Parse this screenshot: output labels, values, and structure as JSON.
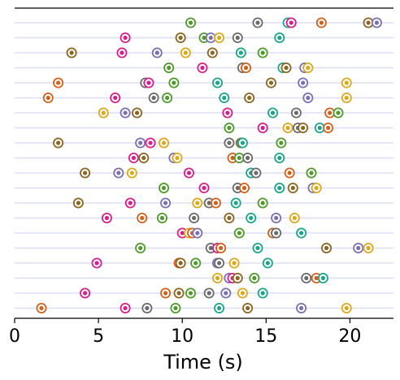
{
  "chart_data": {
    "type": "scatter",
    "title": "",
    "xlabel": "Time (s)",
    "ylabel": "",
    "xlim": [
      0,
      22.6
    ],
    "xticks": [
      0,
      5,
      10,
      15,
      20
    ],
    "xtick_labels": [
      "0",
      "5",
      "10",
      "15",
      "20"
    ],
    "grid": "horizontal row lines",
    "row_line_color": "#ddddf8",
    "palette": {
      "green": "#4e9a2a",
      "pink": "#d61f8c",
      "brown": "#8c6520",
      "orange": "#d2601a",
      "purple": "#7b6fb4",
      "gray": "#6a6a6a",
      "yellow": "#dca81b",
      "teal": "#1aa589"
    },
    "rows": [
      [
        [
          10.5,
          "green"
        ],
        [
          14.5,
          "gray"
        ],
        [
          16.3,
          "teal"
        ],
        [
          16.5,
          "pink"
        ],
        [
          18.3,
          "orange"
        ],
        [
          21.1,
          "brown"
        ],
        [
          21.6,
          "purple"
        ]
      ],
      [
        [
          6.6,
          "pink"
        ],
        [
          9.9,
          "brown"
        ],
        [
          11.3,
          "green"
        ],
        [
          11.7,
          "purple"
        ],
        [
          12.2,
          "yellow"
        ],
        [
          13.3,
          "gray"
        ],
        [
          15.8,
          "teal"
        ]
      ],
      [
        [
          3.4,
          "brown"
        ],
        [
          6.4,
          "pink"
        ],
        [
          8.5,
          "purple"
        ],
        [
          10.2,
          "yellow"
        ],
        [
          11.8,
          "brown"
        ],
        [
          13.5,
          "teal"
        ],
        [
          14.8,
          "green"
        ]
      ],
      [
        [
          9.2,
          "green"
        ],
        [
          11.2,
          "pink"
        ],
        [
          13.6,
          "gray"
        ],
        [
          13.8,
          "orange"
        ],
        [
          16.0,
          "teal"
        ],
        [
          16.2,
          "brown"
        ],
        [
          17.3,
          "purple"
        ],
        [
          17.5,
          "yellow"
        ]
      ],
      [
        [
          2.6,
          "orange"
        ],
        [
          7.8,
          "gray"
        ],
        [
          8.0,
          "pink"
        ],
        [
          9.5,
          "green"
        ],
        [
          12.1,
          "teal"
        ],
        [
          15.3,
          "brown"
        ],
        [
          17.2,
          "purple"
        ],
        [
          19.8,
          "yellow"
        ]
      ],
      [
        [
          2.0,
          "orange"
        ],
        [
          6.0,
          "pink"
        ],
        [
          8.3,
          "gray"
        ],
        [
          9.1,
          "green"
        ],
        [
          12.5,
          "teal"
        ],
        [
          14.0,
          "brown"
        ],
        [
          17.5,
          "purple"
        ],
        [
          19.8,
          "yellow"
        ]
      ],
      [
        [
          5.3,
          "yellow"
        ],
        [
          6.6,
          "purple"
        ],
        [
          7.3,
          "brown"
        ],
        [
          12.7,
          "pink"
        ],
        [
          15.4,
          "teal"
        ],
        [
          16.8,
          "gray"
        ],
        [
          18.8,
          "orange"
        ],
        [
          19.3,
          "green"
        ]
      ],
      [
        [
          12.8,
          "green"
        ],
        [
          14.8,
          "pink"
        ],
        [
          16.3,
          "yellow"
        ],
        [
          16.9,
          "gray"
        ],
        [
          17.2,
          "brown"
        ],
        [
          18.2,
          "teal"
        ],
        [
          18.7,
          "orange"
        ]
      ],
      [
        [
          2.6,
          "brown"
        ],
        [
          7.5,
          "purple"
        ],
        [
          8.1,
          "pink"
        ],
        [
          8.9,
          "yellow"
        ],
        [
          12.8,
          "gray"
        ],
        [
          13.5,
          "brown"
        ],
        [
          13.6,
          "teal"
        ],
        [
          15.9,
          "green"
        ]
      ],
      [
        [
          7.1,
          "pink"
        ],
        [
          7.7,
          "brown"
        ],
        [
          9.5,
          "purple"
        ],
        [
          9.7,
          "yellow"
        ],
        [
          13.0,
          "orange"
        ],
        [
          13.4,
          "green"
        ],
        [
          13.9,
          "gray"
        ],
        [
          15.8,
          "teal"
        ]
      ],
      [
        [
          4.2,
          "brown"
        ],
        [
          6.2,
          "purple"
        ],
        [
          7.0,
          "yellow"
        ],
        [
          10.4,
          "pink"
        ],
        [
          14.1,
          "teal"
        ],
        [
          14.4,
          "gray"
        ],
        [
          16.4,
          "orange"
        ],
        [
          17.7,
          "green"
        ]
      ],
      [
        [
          8.9,
          "green"
        ],
        [
          11.3,
          "pink"
        ],
        [
          13.3,
          "gray"
        ],
        [
          13.7,
          "orange"
        ],
        [
          15.8,
          "teal"
        ],
        [
          16.6,
          "brown"
        ],
        [
          17.8,
          "purple"
        ],
        [
          18.0,
          "yellow"
        ]
      ],
      [
        [
          3.8,
          "brown"
        ],
        [
          6.9,
          "pink"
        ],
        [
          9.0,
          "purple"
        ],
        [
          10.9,
          "yellow"
        ],
        [
          11.6,
          "gray"
        ],
        [
          12.0,
          "orange"
        ],
        [
          13.2,
          "teal"
        ],
        [
          14.8,
          "green"
        ]
      ],
      [
        [
          5.5,
          "pink"
        ],
        [
          7.6,
          "orange"
        ],
        [
          8.8,
          "green"
        ],
        [
          10.7,
          "gray"
        ],
        [
          12.8,
          "brown"
        ],
        [
          14.1,
          "teal"
        ],
        [
          15.6,
          "purple"
        ],
        [
          16.7,
          "yellow"
        ]
      ],
      [
        [
          10.0,
          "pink"
        ],
        [
          10.4,
          "yellow"
        ],
        [
          10.6,
          "orange"
        ],
        [
          10.9,
          "purple"
        ],
        [
          13.4,
          "green"
        ],
        [
          15.4,
          "orange"
        ],
        [
          15.6,
          "gray"
        ],
        [
          17.1,
          "teal"
        ]
      ],
      [
        [
          7.5,
          "green"
        ],
        [
          11.7,
          "gray"
        ],
        [
          12.1,
          "pink"
        ],
        [
          12.3,
          "orange"
        ],
        [
          14.5,
          "teal"
        ],
        [
          18.6,
          "brown"
        ],
        [
          20.5,
          "purple"
        ],
        [
          21.1,
          "yellow"
        ]
      ],
      [
        [
          4.9,
          "pink"
        ],
        [
          9.8,
          "orange"
        ],
        [
          9.9,
          "brown"
        ],
        [
          10.8,
          "green"
        ],
        [
          12.1,
          "purple"
        ],
        [
          12.2,
          "gray"
        ],
        [
          13.1,
          "yellow"
        ],
        [
          15.1,
          "teal"
        ]
      ],
      [
        [
          12.1,
          "yellow"
        ],
        [
          12.8,
          "purple"
        ],
        [
          13.0,
          "pink"
        ],
        [
          13.3,
          "brown"
        ],
        [
          14.3,
          "green"
        ],
        [
          17.4,
          "gray"
        ],
        [
          18.0,
          "orange"
        ],
        [
          18.4,
          "teal"
        ]
      ],
      [
        [
          4.2,
          "pink"
        ],
        [
          9.0,
          "orange"
        ],
        [
          9.8,
          "brown"
        ],
        [
          10.5,
          "green"
        ],
        [
          11.6,
          "gray"
        ],
        [
          12.6,
          "purple"
        ],
        [
          13.6,
          "yellow"
        ],
        [
          14.8,
          "teal"
        ]
      ],
      [
        [
          1.6,
          "orange"
        ],
        [
          6.6,
          "pink"
        ],
        [
          7.9,
          "gray"
        ],
        [
          9.6,
          "green"
        ],
        [
          12.2,
          "teal"
        ],
        [
          13.9,
          "brown"
        ],
        [
          17.1,
          "purple"
        ],
        [
          19.8,
          "yellow"
        ]
      ]
    ]
  }
}
